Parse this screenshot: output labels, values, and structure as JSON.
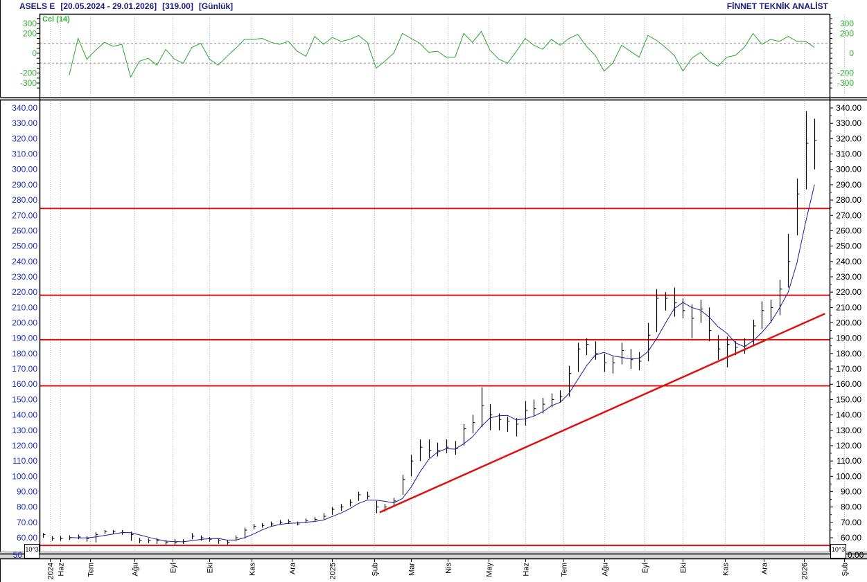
{
  "header": {
    "symbol": "ASELS E",
    "range": "[20.05.2024 - 29.01.2026]",
    "last": "[319.00]",
    "period": "[Günlük]",
    "brand": "FİNNET TEKNİK ANALİST"
  },
  "scale_box_label": "10^3",
  "chart_data": [
    {
      "type": "line",
      "panel": "indicator",
      "name": "Cci (14)",
      "color": "#2aa82a",
      "ylim": [
        -350,
        350
      ],
      "yticks": [
        300,
        200,
        0,
        -200,
        -300
      ],
      "reference_lines": [
        100,
        -100
      ],
      "values": [
        null,
        null,
        null,
        -220,
        150,
        -60,
        30,
        110,
        70,
        90,
        -240,
        -80,
        -50,
        -120,
        40,
        -60,
        -100,
        60,
        100,
        -60,
        -120,
        -30,
        50,
        140,
        140,
        150,
        110,
        90,
        120,
        20,
        -30,
        170,
        90,
        160,
        120,
        140,
        180,
        110,
        -150,
        -80,
        0,
        200,
        150,
        100,
        10,
        20,
        -40,
        -40,
        200,
        110,
        220,
        30,
        -60,
        -100,
        20,
        150,
        80,
        40,
        140,
        80,
        150,
        190,
        70,
        -20,
        -180,
        -100,
        80,
        20,
        -40,
        180,
        130,
        60,
        -20,
        -180,
        -50,
        10,
        -80,
        -130,
        -40,
        -20,
        60,
        200,
        90,
        140,
        120,
        170,
        120,
        120,
        60
      ]
    },
    {
      "type": "ohlc",
      "panel": "price",
      "ylim": [
        51,
        345
      ],
      "yticks": [
        60,
        70,
        80,
        90,
        100,
        110,
        120,
        130,
        140,
        150,
        160,
        170,
        180,
        190,
        200,
        210,
        220,
        230,
        240,
        250,
        260,
        270,
        280,
        290,
        300,
        310,
        320,
        330,
        340
      ],
      "bar_color": "#000000",
      "ma_color": "#1a1aa0",
      "x": [
        "2024-05-20",
        "2024-05-27",
        "2024-06-03",
        "2024-06-10",
        "2024-06-17",
        "2024-06-24",
        "2024-07-01",
        "2024-07-08",
        "2024-07-15",
        "2024-07-22",
        "2024-07-29",
        "2024-08-05",
        "2024-08-12",
        "2024-08-19",
        "2024-08-26",
        "2024-09-02",
        "2024-09-09",
        "2024-09-16",
        "2024-09-23",
        "2024-09-30",
        "2024-10-07",
        "2024-10-14",
        "2024-10-21",
        "2024-10-28",
        "2024-11-04",
        "2024-11-11",
        "2024-11-18",
        "2024-11-25",
        "2024-12-02",
        "2024-12-09",
        "2024-12-16",
        "2024-12-23",
        "2024-12-30",
        "2025-01-06",
        "2025-01-13",
        "2025-01-20",
        "2025-01-27",
        "2025-02-03",
        "2025-02-10",
        "2025-02-17",
        "2025-02-24",
        "2025-03-03",
        "2025-03-10",
        "2025-03-17",
        "2025-03-24",
        "2025-03-31",
        "2025-04-07",
        "2025-04-14",
        "2025-04-21",
        "2025-04-28",
        "2025-05-05",
        "2025-05-12",
        "2025-05-19",
        "2025-05-26",
        "2025-06-02",
        "2025-06-09",
        "2025-06-16",
        "2025-06-23",
        "2025-06-30",
        "2025-07-07",
        "2025-07-14",
        "2025-07-21",
        "2025-07-28",
        "2025-08-04",
        "2025-08-11",
        "2025-08-18",
        "2025-08-25",
        "2025-09-01",
        "2025-09-08",
        "2025-09-15",
        "2025-09-22",
        "2025-09-29",
        "2025-10-06",
        "2025-10-13",
        "2025-10-20",
        "2025-10-27",
        "2025-11-03",
        "2025-11-10",
        "2025-11-17",
        "2025-11-24",
        "2025-12-01",
        "2025-12-08",
        "2025-12-15",
        "2025-12-22",
        "2025-12-29",
        "2026-01-05",
        "2026-01-12",
        "2026-01-19",
        "2026-01-26"
      ],
      "high": [
        63,
        61,
        61,
        61.5,
        62,
        61,
        63.5,
        65,
        65,
        65,
        64,
        60,
        59.5,
        59.5,
        58.5,
        59,
        59,
        63,
        61.5,
        60.5,
        59.5,
        58.5,
        61.5,
        66.5,
        69,
        69.5,
        70.5,
        71.5,
        72,
        70.5,
        72.5,
        73.5,
        76,
        80,
        82,
        85,
        90,
        90,
        84,
        82,
        86,
        101,
        114,
        124,
        124,
        122,
        124,
        123,
        134,
        140,
        158,
        147,
        141,
        139,
        138,
        149,
        150,
        151,
        154,
        156,
        172,
        187,
        190,
        188,
        180,
        178,
        187,
        183,
        181,
        200,
        222,
        220,
        223,
        216,
        212,
        215,
        210,
        192,
        191,
        188,
        190,
        202,
        214,
        215,
        228,
        258,
        294,
        338,
        333
      ],
      "low": [
        60,
        58,
        58,
        58.5,
        59,
        57.5,
        57,
        62.5,
        62.5,
        62,
        58,
        56.5,
        56.5,
        56,
        55.5,
        55.5,
        56,
        59,
        58,
        57.5,
        56,
        55.5,
        58,
        59.5,
        65.5,
        66.5,
        67.5,
        68.5,
        69,
        68,
        69.5,
        70.5,
        72,
        75,
        77.5,
        80.5,
        84,
        85,
        76,
        77,
        80,
        88,
        100,
        110,
        112,
        113,
        115,
        114,
        120,
        128,
        132,
        130,
        130,
        129,
        126,
        133,
        139,
        141,
        145,
        148,
        152,
        168,
        179,
        176,
        168,
        167,
        173,
        170,
        169,
        175,
        194,
        208,
        204,
        203,
        190,
        200,
        188,
        176,
        171,
        179,
        180,
        185,
        196,
        200,
        205,
        223,
        257,
        287,
        300
      ],
      "close": [
        62,
        59.5,
        59.5,
        60,
        60.5,
        59.5,
        62,
        64,
        64,
        63.5,
        62,
        58,
        58,
        58,
        57,
        57,
        57.5,
        61,
        60,
        59,
        58,
        57,
        60,
        65,
        67.5,
        68,
        69,
        70,
        70.5,
        69,
        71,
        72,
        74,
        78.5,
        80,
        83,
        88,
        87,
        80,
        80,
        84,
        98,
        110,
        119,
        117,
        117,
        119,
        118,
        131,
        135,
        146,
        140,
        137,
        136,
        134,
        143,
        144,
        147,
        150,
        152,
        167,
        183,
        186,
        180,
        174,
        174,
        182,
        176,
        175,
        192,
        216,
        216,
        213,
        208,
        203,
        209,
        195,
        183,
        186,
        184,
        185,
        198,
        208,
        210,
        222,
        240,
        284,
        317,
        319
      ],
      "horizontal_lines": [
        274.5,
        218,
        189,
        159,
        55
      ],
      "horizontal_line_color": "#e01010",
      "trendline": {
        "from": [
          "2025-02-12",
          76.5
        ],
        "to": [
          "2026-02-03",
          206
        ],
        "color": "#e01010"
      }
    }
  ],
  "x_axis_ticks": [
    {
      "label": "2024",
      "date": "2024-05-24"
    },
    {
      "label": "Haz",
      "date": "2024-06-03"
    },
    {
      "label": "Tem",
      "date": "2024-06-26"
    },
    {
      "label": "Ağu",
      "date": "2024-07-31"
    },
    {
      "label": "Eyl",
      "date": "2024-08-30"
    },
    {
      "label": "Eki",
      "date": "2024-09-30"
    },
    {
      "label": "Kas",
      "date": "2024-11-01"
    },
    {
      "label": "Ara",
      "date": "2024-12-04"
    },
    {
      "label": "2025",
      "date": "2025-01-06"
    },
    {
      "label": "Şub",
      "date": "2025-02-07"
    },
    {
      "label": "Mar",
      "date": "2025-03-10"
    },
    {
      "label": "Nis",
      "date": "2025-04-08"
    },
    {
      "label": "May",
      "date": "2025-05-09"
    },
    {
      "label": "Haz",
      "date": "2025-06-09"
    },
    {
      "label": "Tem",
      "date": "2025-07-09"
    },
    {
      "label": "Ağu",
      "date": "2025-08-11"
    },
    {
      "label": "Eyl",
      "date": "2025-09-11"
    },
    {
      "label": "Eki",
      "date": "2025-10-13"
    },
    {
      "label": "Kas",
      "date": "2025-11-14"
    },
    {
      "label": "Ara",
      "date": "2025-12-16"
    },
    {
      "label": "2026",
      "date": "2026-01-16"
    },
    {
      "label": "Şub",
      "date": "2026-02-18"
    }
  ]
}
